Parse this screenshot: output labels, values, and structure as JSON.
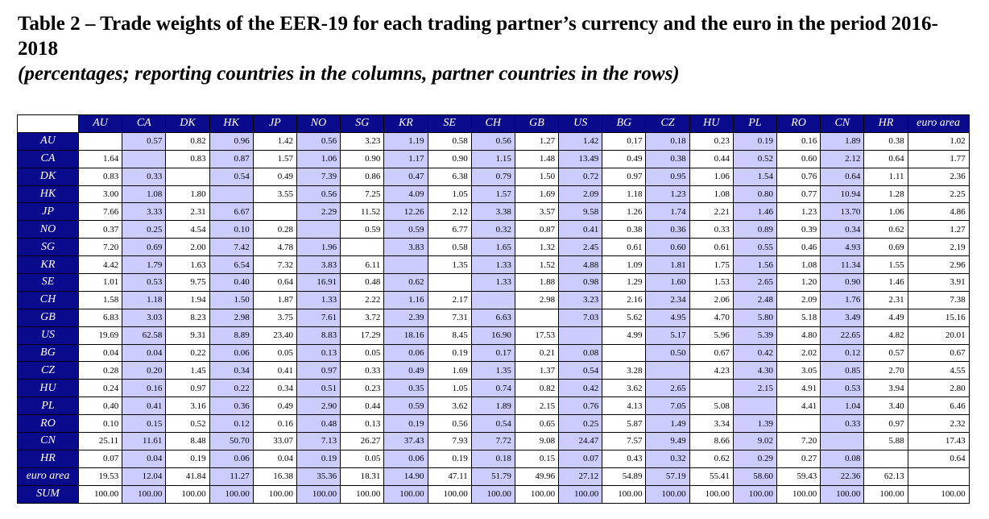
{
  "title": "Table 2 – Trade weights of the EER-19 for each trading partner’s currency and the euro in the period 2016-2018",
  "subtitle": "(percentages; reporting countries in the columns, partner countries in the rows)",
  "columns": [
    "AU",
    "CA",
    "DK",
    "HK",
    "JP",
    "NO",
    "SG",
    "KR",
    "SE",
    "CH",
    "GB",
    "US",
    "BG",
    "CZ",
    "HU",
    "PL",
    "RO",
    "CN",
    "HR",
    "euro area"
  ],
  "rows": [
    {
      "label": "AU",
      "values": [
        "",
        "0.57",
        "0.82",
        "0.96",
        "1.42",
        "0.56",
        "3.23",
        "1.19",
        "0.58",
        "0.56",
        "1.27",
        "1.42",
        "0.17",
        "0.18",
        "0.23",
        "0.19",
        "0.16",
        "1.89",
        "0.38",
        "1.02"
      ]
    },
    {
      "label": "CA",
      "values": [
        "1.64",
        "",
        "0.83",
        "0.87",
        "1.57",
        "1.06",
        "0.90",
        "1.17",
        "0.90",
        "1.15",
        "1.48",
        "13.49",
        "0.49",
        "0.38",
        "0.44",
        "0.52",
        "0.60",
        "2.12",
        "0.64",
        "1.77"
      ]
    },
    {
      "label": "DK",
      "values": [
        "0.83",
        "0.33",
        "",
        "0.54",
        "0.49",
        "7.39",
        "0.86",
        "0.47",
        "6.38",
        "0.79",
        "1.50",
        "0.72",
        "0.97",
        "0.95",
        "1.06",
        "1.54",
        "0.76",
        "0.64",
        "1.11",
        "2.36"
      ]
    },
    {
      "label": "HK",
      "values": [
        "3.00",
        "1.08",
        "1.80",
        "",
        "3.55",
        "0.56",
        "7.25",
        "4.09",
        "1.05",
        "1.57",
        "1.69",
        "2.09",
        "1.18",
        "1.23",
        "1.08",
        "0.80",
        "0.77",
        "10.94",
        "1.28",
        "2.25"
      ]
    },
    {
      "label": "JP",
      "values": [
        "7.66",
        "3.33",
        "2.31",
        "6.67",
        "",
        "2.29",
        "11.52",
        "12.26",
        "2.12",
        "3.38",
        "3.57",
        "9.58",
        "1.26",
        "1.74",
        "2.21",
        "1.46",
        "1.23",
        "13.70",
        "1.06",
        "4.86"
      ]
    },
    {
      "label": "NO",
      "values": [
        "0.37",
        "0.25",
        "4.54",
        "0.10",
        "0.28",
        "",
        "0.59",
        "0.59",
        "6.77",
        "0.32",
        "0.87",
        "0.41",
        "0.38",
        "0.36",
        "0.33",
        "0.89",
        "0.39",
        "0.34",
        "0.62",
        "1.27"
      ]
    },
    {
      "label": "SG",
      "values": [
        "7.20",
        "0.69",
        "2.00",
        "7.42",
        "4.78",
        "1.96",
        "",
        "3.83",
        "0.58",
        "1.65",
        "1.32",
        "2.45",
        "0.61",
        "0.60",
        "0.61",
        "0.55",
        "0.46",
        "4.93",
        "0.69",
        "2.19"
      ]
    },
    {
      "label": "KR",
      "values": [
        "4.42",
        "1.79",
        "1.63",
        "6.54",
        "7.32",
        "3.83",
        "6.11",
        "",
        "1.35",
        "1.33",
        "1.52",
        "4.88",
        "1.09",
        "1.81",
        "1.75",
        "1.56",
        "1.08",
        "11.34",
        "1.55",
        "2.96"
      ]
    },
    {
      "label": "SE",
      "values": [
        "1.01",
        "0.53",
        "9.75",
        "0.40",
        "0.64",
        "16.91",
        "0.48",
        "0.62",
        "",
        "1.33",
        "1.88",
        "0.98",
        "1.29",
        "1.60",
        "1.53",
        "2.65",
        "1.20",
        "0.90",
        "1.46",
        "3.91"
      ]
    },
    {
      "label": "CH",
      "values": [
        "1.58",
        "1.18",
        "1.94",
        "1.50",
        "1.87",
        "1.33",
        "2.22",
        "1.16",
        "2.17",
        "",
        "2.98",
        "3.23",
        "2.16",
        "2.34",
        "2.06",
        "2.48",
        "2.09",
        "1.76",
        "2.31",
        "7.38"
      ]
    },
    {
      "label": "GB",
      "values": [
        "6.83",
        "3.03",
        "8.23",
        "2.98",
        "3.75",
        "7.61",
        "3.72",
        "2.39",
        "7.31",
        "6.63",
        "",
        "7.03",
        "5.62",
        "4.95",
        "4.70",
        "5.80",
        "5.18",
        "3.49",
        "4.49",
        "15.16"
      ]
    },
    {
      "label": "US",
      "values": [
        "19.69",
        "62.58",
        "9.31",
        "8.89",
        "23.40",
        "8.83",
        "17.29",
        "18.16",
        "8.45",
        "16.90",
        "17.53",
        "",
        "4.99",
        "5.17",
        "5.96",
        "5.39",
        "4.80",
        "22.65",
        "4.82",
        "20.01"
      ]
    },
    {
      "label": "BG",
      "values": [
        "0.04",
        "0.04",
        "0.22",
        "0.06",
        "0.05",
        "0.13",
        "0.05",
        "0.06",
        "0.19",
        "0.17",
        "0.21",
        "0.08",
        "",
        "0.50",
        "0.67",
        "0.42",
        "2.02",
        "0.12",
        "0.57",
        "0.67"
      ]
    },
    {
      "label": "CZ",
      "values": [
        "0.28",
        "0.20",
        "1.45",
        "0.34",
        "0.41",
        "0.97",
        "0.33",
        "0.49",
        "1.69",
        "1.35",
        "1.37",
        "0.54",
        "3.28",
        "",
        "4.23",
        "4.30",
        "3.05",
        "0.85",
        "2.70",
        "4.55"
      ]
    },
    {
      "label": "HU",
      "values": [
        "0.24",
        "0.16",
        "0.97",
        "0.22",
        "0.34",
        "0.51",
        "0.23",
        "0.35",
        "1.05",
        "0.74",
        "0.82",
        "0.42",
        "3.62",
        "2.65",
        "",
        "2.15",
        "4.91",
        "0.53",
        "3.94",
        "2.80"
      ]
    },
    {
      "label": "PL",
      "values": [
        "0.40",
        "0.41",
        "3.16",
        "0.36",
        "0.49",
        "2.90",
        "0.44",
        "0.59",
        "3.62",
        "1.89",
        "2.15",
        "0.76",
        "4.13",
        "7.05",
        "5.08",
        "",
        "4.41",
        "1.04",
        "3.40",
        "6.46"
      ]
    },
    {
      "label": "RO",
      "values": [
        "0.10",
        "0.15",
        "0.52",
        "0.12",
        "0.16",
        "0.48",
        "0.13",
        "0.19",
        "0.56",
        "0.54",
        "0.65",
        "0.25",
        "5.87",
        "1.49",
        "3.34",
        "1.39",
        "",
        "0.33",
        "0.97",
        "2.32"
      ]
    },
    {
      "label": "CN",
      "values": [
        "25.11",
        "11.61",
        "8.48",
        "50.70",
        "33.07",
        "7.13",
        "26.27",
        "37.43",
        "7.93",
        "7.72",
        "9.08",
        "24.47",
        "7.57",
        "9.49",
        "8.66",
        "9.02",
        "7.20",
        "",
        "5.88",
        "17.43"
      ]
    },
    {
      "label": "HR",
      "values": [
        "0.07",
        "0.04",
        "0.19",
        "0.06",
        "0.04",
        "0.19",
        "0.05",
        "0.06",
        "0.19",
        "0.18",
        "0.15",
        "0.07",
        "0.43",
        "0.32",
        "0.62",
        "0.29",
        "0.27",
        "0.08",
        "",
        "0.64"
      ]
    },
    {
      "label": "euro area",
      "values": [
        "19.53",
        "12.04",
        "41.84",
        "11.27",
        "16.38",
        "35.36",
        "18.31",
        "14.90",
        "47.11",
        "51.79",
        "49.96",
        "27.12",
        "54.89",
        "57.19",
        "55.41",
        "58.60",
        "59.43",
        "22.36",
        "62.13",
        ""
      ]
    },
    {
      "label": "SUM",
      "values": [
        "100.00",
        "100.00",
        "100.00",
        "100.00",
        "100.00",
        "100.00",
        "100.00",
        "100.00",
        "100.00",
        "100.00",
        "100.00",
        "100.00",
        "100.00",
        "100.00",
        "100.00",
        "100.00",
        "100.00",
        "100.00",
        "100.00",
        "100.00"
      ]
    }
  ],
  "colors": {
    "header_bg": "#0a0a8c",
    "header_text": "#ffffff",
    "shaded_cell": "#ccccff",
    "plain_cell": "#ffffff"
  }
}
